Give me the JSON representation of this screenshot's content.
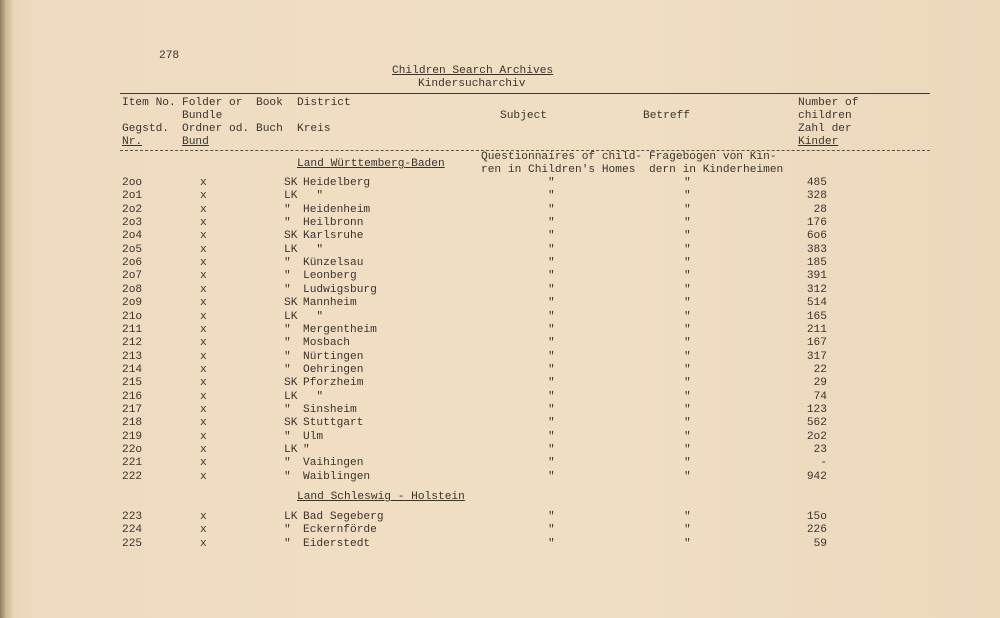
{
  "page_number": "278",
  "title": "Children Search Archives",
  "subtitle": "Kindersucharchiv",
  "headers": {
    "item_no": [
      "Item No.",
      "",
      "Gegstd.",
      "Nr."
    ],
    "folder": [
      "Folder or",
      "Bundle",
      "Ordner od.",
      "Bund"
    ],
    "book": [
      "Book",
      "",
      "Buch",
      ""
    ],
    "district": [
      "District",
      "",
      "Kreis",
      ""
    ],
    "subject": "Subject",
    "betreff": "Betreff",
    "count": [
      "Number of",
      "children",
      "Zahl der",
      "Kinder"
    ]
  },
  "sections": [
    {
      "heading": "Land Württemberg-Baden",
      "subject": [
        "Questionnaires of child-",
        "ren in Children's Homes"
      ],
      "betreff": [
        "Fragebogen von Kin-",
        "dern in Kinderheimen"
      ],
      "rows": [
        {
          "item": "2oo",
          "folder": "x",
          "prefix": "SK",
          "name": "Heidelberg",
          "subject": "\"",
          "betreff": "\"",
          "count": "485"
        },
        {
          "item": "2o1",
          "folder": "x",
          "prefix": "LK",
          "name": "  \"",
          "subject": "\"",
          "betreff": "\"",
          "count": "328"
        },
        {
          "item": "2o2",
          "folder": "x",
          "prefix": "\"",
          "name": "Heidenheim",
          "subject": "\"",
          "betreff": "\"",
          "count": "28"
        },
        {
          "item": "2o3",
          "folder": "x",
          "prefix": "\"",
          "name": "Heilbronn",
          "subject": "\"",
          "betreff": "\"",
          "count": "176"
        },
        {
          "item": "2o4",
          "folder": "x",
          "prefix": "SK",
          "name": "Karlsruhe",
          "subject": "\"",
          "betreff": "\"",
          "count": "6o6"
        },
        {
          "item": "2o5",
          "folder": "x",
          "prefix": "LK",
          "name": "  \"",
          "subject": "\"",
          "betreff": "\"",
          "count": "383"
        },
        {
          "item": "2o6",
          "folder": "x",
          "prefix": "\"",
          "name": "Künzelsau",
          "subject": "\"",
          "betreff": "\"",
          "count": "185"
        },
        {
          "item": "2o7",
          "folder": "x",
          "prefix": "\"",
          "name": "Leonberg",
          "subject": "\"",
          "betreff": "\"",
          "count": "391"
        },
        {
          "item": "2o8",
          "folder": "x",
          "prefix": "\"",
          "name": "Ludwigsburg",
          "subject": "\"",
          "betreff": "\"",
          "count": "312"
        },
        {
          "item": "2o9",
          "folder": "x",
          "prefix": "SK",
          "name": "Mannheim",
          "subject": "\"",
          "betreff": "\"",
          "count": "514"
        },
        {
          "item": "21o",
          "folder": "x",
          "prefix": "LK",
          "name": "  \"",
          "subject": "\"",
          "betreff": "\"",
          "count": "165"
        },
        {
          "item": "211",
          "folder": "x",
          "prefix": "\"",
          "name": "Mergentheim",
          "subject": "\"",
          "betreff": "\"",
          "count": "211"
        },
        {
          "item": "212",
          "folder": "x",
          "prefix": "\"",
          "name": "Mosbach",
          "subject": "\"",
          "betreff": "\"",
          "count": "167"
        },
        {
          "item": "213",
          "folder": "x",
          "prefix": "\"",
          "name": "Nürtingen",
          "subject": "\"",
          "betreff": "\"",
          "count": "317"
        },
        {
          "item": "214",
          "folder": "x",
          "prefix": "\"",
          "name": "Oehringen",
          "subject": "\"",
          "betreff": "\"",
          "count": "22"
        },
        {
          "item": "215",
          "folder": "x",
          "prefix": "SK",
          "name": "Pforzheim",
          "subject": "\"",
          "betreff": "\"",
          "count": "29"
        },
        {
          "item": "216",
          "folder": "x",
          "prefix": "LK",
          "name": "  \"",
          "subject": "\"",
          "betreff": "\"",
          "count": "74"
        },
        {
          "item": "217",
          "folder": "x",
          "prefix": "\"",
          "name": "Sinsheim",
          "subject": "\"",
          "betreff": "\"",
          "count": "123"
        },
        {
          "item": "218",
          "folder": "x",
          "prefix": "SK",
          "name": "Stuttgart",
          "subject": "\"",
          "betreff": "\"",
          "count": "562"
        },
        {
          "item": "219",
          "folder": "x",
          "prefix": "\"",
          "name": "Ulm",
          "subject": "\"",
          "betreff": "\"",
          "count": "2o2"
        },
        {
          "item": "22o",
          "folder": "x",
          "prefix": "LK",
          "name": "\"",
          "subject": "\"",
          "betreff": "\"",
          "count": "23"
        },
        {
          "item": "221",
          "folder": "x",
          "prefix": "\"",
          "name": "Vaihingen",
          "subject": "\"",
          "betreff": "\"",
          "count": "-"
        },
        {
          "item": "222",
          "folder": "x",
          "prefix": "\"",
          "name": "Waiblingen",
          "subject": "\"",
          "betreff": "\"",
          "count": "942"
        }
      ]
    },
    {
      "heading": "Land Schleswig - Holstein",
      "rows": [
        {
          "item": "223",
          "folder": "x",
          "prefix": "LK",
          "name": "Bad Segeberg",
          "subject": "\"",
          "betreff": "\"",
          "count": "15o"
        },
        {
          "item": "224",
          "folder": "x",
          "prefix": "\"",
          "name": "Eckernförde",
          "subject": "\"",
          "betreff": "\"",
          "count": "226"
        },
        {
          "item": "225",
          "folder": "x",
          "prefix": "\"",
          "name": "Eiderstedt",
          "subject": "\"",
          "betreff": "\"",
          "count": "59"
        }
      ]
    }
  ]
}
